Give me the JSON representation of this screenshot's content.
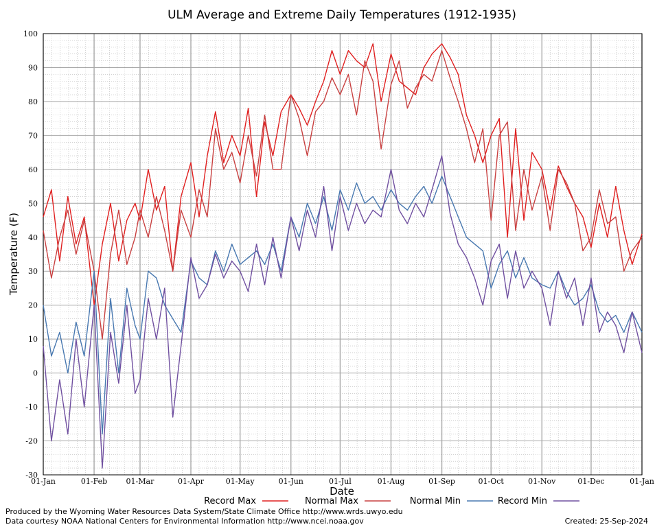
{
  "chart_data": {
    "type": "line",
    "title": "ULM Average and Extreme Daily Temperatures (1912-1935)",
    "xlabel": "Date",
    "ylabel": "Temperature (F)",
    "ylim": [
      -30,
      100
    ],
    "yticks": [
      -30,
      -20,
      -10,
      0,
      10,
      20,
      30,
      40,
      50,
      60,
      70,
      80,
      90,
      100
    ],
    "xtick_labels": [
      "01-Jan",
      "01-Feb",
      "01-Mar",
      "01-Apr",
      "01-May",
      "01-Jun",
      "01-Jul",
      "01-Aug",
      "01-Sep",
      "01-Oct",
      "01-Nov",
      "01-Dec",
      "01-Jan"
    ],
    "xtick_days": [
      0,
      31,
      59,
      90,
      120,
      151,
      181,
      212,
      243,
      273,
      304,
      334,
      365
    ],
    "grid": true,
    "legend_position": "bottom",
    "series": [
      {
        "name": "Record Max",
        "color": "#e02020",
        "x": [
          0,
          5,
          10,
          15,
          20,
          25,
          31,
          36,
          41,
          46,
          51,
          56,
          59,
          64,
          69,
          74,
          79,
          84,
          90,
          95,
          100,
          105,
          110,
          115,
          120,
          125,
          130,
          135,
          140,
          145,
          151,
          156,
          161,
          166,
          171,
          176,
          181,
          186,
          191,
          196,
          201,
          206,
          212,
          217,
          222,
          227,
          232,
          237,
          243,
          248,
          253,
          258,
          263,
          268,
          273,
          278,
          283,
          288,
          293,
          298,
          304,
          309,
          314,
          319,
          324,
          329,
          334,
          339,
          344,
          349,
          354,
          359,
          365
        ],
        "y": [
          46,
          54,
          33,
          52,
          38,
          46,
          20,
          38,
          50,
          33,
          45,
          50,
          45,
          60,
          48,
          55,
          30,
          52,
          62,
          46,
          64,
          77,
          62,
          70,
          64,
          78,
          52,
          74,
          64,
          77,
          82,
          78,
          73,
          80,
          86,
          95,
          88,
          95,
          92,
          90,
          97,
          80,
          94,
          86,
          84,
          82,
          90,
          94,
          97,
          93,
          88,
          76,
          70,
          62,
          70,
          75,
          40,
          72,
          45,
          65,
          60,
          48,
          61,
          55,
          50,
          46,
          37,
          50,
          40,
          55,
          42,
          32,
          41
        ]
      },
      {
        "name": "Normal Max",
        "color": "#c84040",
        "x": [
          0,
          5,
          10,
          15,
          20,
          25,
          31,
          36,
          41,
          46,
          51,
          56,
          59,
          64,
          69,
          74,
          79,
          84,
          90,
          95,
          100,
          105,
          110,
          115,
          120,
          125,
          130,
          135,
          140,
          145,
          151,
          156,
          161,
          166,
          171,
          176,
          181,
          186,
          191,
          196,
          201,
          206,
          212,
          217,
          222,
          227,
          232,
          237,
          243,
          248,
          253,
          258,
          263,
          268,
          273,
          278,
          283,
          288,
          293,
          298,
          304,
          309,
          314,
          319,
          324,
          329,
          334,
          339,
          344,
          349,
          354,
          359,
          365
        ],
        "y": [
          42,
          28,
          40,
          48,
          35,
          45,
          30,
          10,
          35,
          48,
          32,
          40,
          48,
          40,
          52,
          42,
          30,
          48,
          40,
          54,
          46,
          72,
          60,
          65,
          56,
          70,
          58,
          76,
          60,
          60,
          82,
          75,
          64,
          77,
          80,
          87,
          82,
          88,
          76,
          92,
          86,
          66,
          85,
          92,
          78,
          84,
          88,
          86,
          95,
          87,
          80,
          72,
          62,
          72,
          45,
          70,
          74,
          42,
          60,
          48,
          58,
          42,
          60,
          56,
          50,
          36,
          40,
          54,
          44,
          46,
          30,
          36,
          40
        ]
      },
      {
        "name": "Normal Min",
        "color": "#4878b0",
        "x": [
          0,
          5,
          10,
          15,
          20,
          25,
          31,
          36,
          41,
          46,
          51,
          56,
          59,
          64,
          69,
          74,
          79,
          84,
          90,
          95,
          100,
          105,
          110,
          115,
          120,
          125,
          130,
          135,
          140,
          145,
          151,
          156,
          161,
          166,
          171,
          176,
          181,
          186,
          191,
          196,
          201,
          206,
          212,
          217,
          222,
          227,
          232,
          237,
          243,
          248,
          253,
          258,
          263,
          268,
          273,
          278,
          283,
          288,
          293,
          298,
          304,
          309,
          314,
          319,
          324,
          329,
          334,
          339,
          344,
          349,
          354,
          359,
          365
        ],
        "y": [
          20,
          5,
          12,
          0,
          15,
          5,
          30,
          -18,
          22,
          0,
          25,
          14,
          10,
          30,
          28,
          20,
          16,
          12,
          33,
          28,
          26,
          36,
          30,
          38,
          32,
          34,
          36,
          32,
          38,
          30,
          46,
          40,
          50,
          44,
          52,
          42,
          54,
          48,
          56,
          50,
          52,
          48,
          54,
          50,
          48,
          52,
          55,
          50,
          58,
          52,
          46,
          40,
          38,
          36,
          25,
          32,
          36,
          28,
          34,
          28,
          26,
          25,
          30,
          24,
          20,
          22,
          26,
          18,
          15,
          17,
          12,
          18,
          12
        ]
      },
      {
        "name": "Record Min",
        "color": "#7050a0",
        "x": [
          0,
          5,
          10,
          15,
          20,
          25,
          31,
          36,
          41,
          46,
          51,
          56,
          59,
          64,
          69,
          74,
          79,
          84,
          90,
          95,
          100,
          105,
          110,
          115,
          120,
          125,
          130,
          135,
          140,
          145,
          151,
          156,
          161,
          166,
          171,
          176,
          181,
          186,
          191,
          196,
          201,
          206,
          212,
          217,
          222,
          227,
          232,
          237,
          243,
          248,
          253,
          258,
          263,
          268,
          273,
          278,
          283,
          288,
          293,
          298,
          304,
          309,
          314,
          319,
          324,
          329,
          334,
          339,
          344,
          349,
          354,
          359,
          365
        ],
        "y": [
          8,
          -20,
          -2,
          -18,
          10,
          -10,
          20,
          -28,
          12,
          -3,
          20,
          -6,
          -2,
          22,
          10,
          25,
          -13,
          8,
          34,
          22,
          26,
          35,
          28,
          33,
          30,
          24,
          38,
          26,
          40,
          28,
          46,
          36,
          48,
          40,
          55,
          36,
          52,
          42,
          50,
          44,
          48,
          46,
          60,
          48,
          44,
          50,
          46,
          54,
          64,
          47,
          38,
          34,
          28,
          20,
          33,
          38,
          22,
          36,
          25,
          30,
          25,
          14,
          30,
          22,
          28,
          14,
          28,
          12,
          18,
          14,
          6,
          18,
          6
        ]
      }
    ]
  },
  "footer": {
    "produced_by": "Produced by the Wyoming Water Resources Data System/State Climate Office http://www.wrds.uwyo.edu",
    "data_courtesy": "Data courtesy NOAA National Centers for Environmental Information http://www.ncei.noaa.gov",
    "created": "Created:  25-Sep-2024"
  }
}
